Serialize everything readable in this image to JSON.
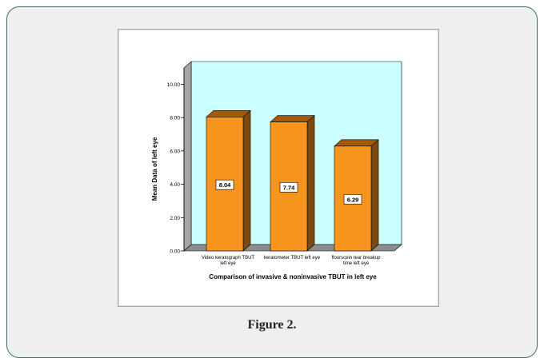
{
  "figure": {
    "caption": "Figure 2."
  },
  "chart_data": {
    "type": "bar",
    "categories": [
      [
        "Video keratograph TBUT",
        "left eye"
      ],
      [
        "keratometer TBUT left eye"
      ],
      [
        "flourscein tear breakup",
        "time left eye"
      ]
    ],
    "values": [
      8.04,
      7.74,
      6.29
    ],
    "data_labels": [
      "8.04",
      "7.74",
      "6.29"
    ],
    "title": "",
    "xlabel": "Comparison of invasive & noninvasive TBUT in left eye",
    "ylabel": "Mean Data of left eye",
    "ylim": [
      0,
      10
    ],
    "yticks": [
      0,
      2,
      4,
      6,
      8,
      10
    ],
    "ytick_labels": [
      "0.00",
      "2.00",
      "4.00",
      "6.00",
      "8.00",
      "10.00"
    ],
    "grid": false,
    "three_d": true,
    "colors": {
      "plot_bg": "#ccffff",
      "floor": "#8c8c8c",
      "wall_side": "#a6a6a6",
      "bar_front": "#f7941d",
      "bar_top": "#a55a08",
      "bar_side": "#7a4a10"
    }
  }
}
